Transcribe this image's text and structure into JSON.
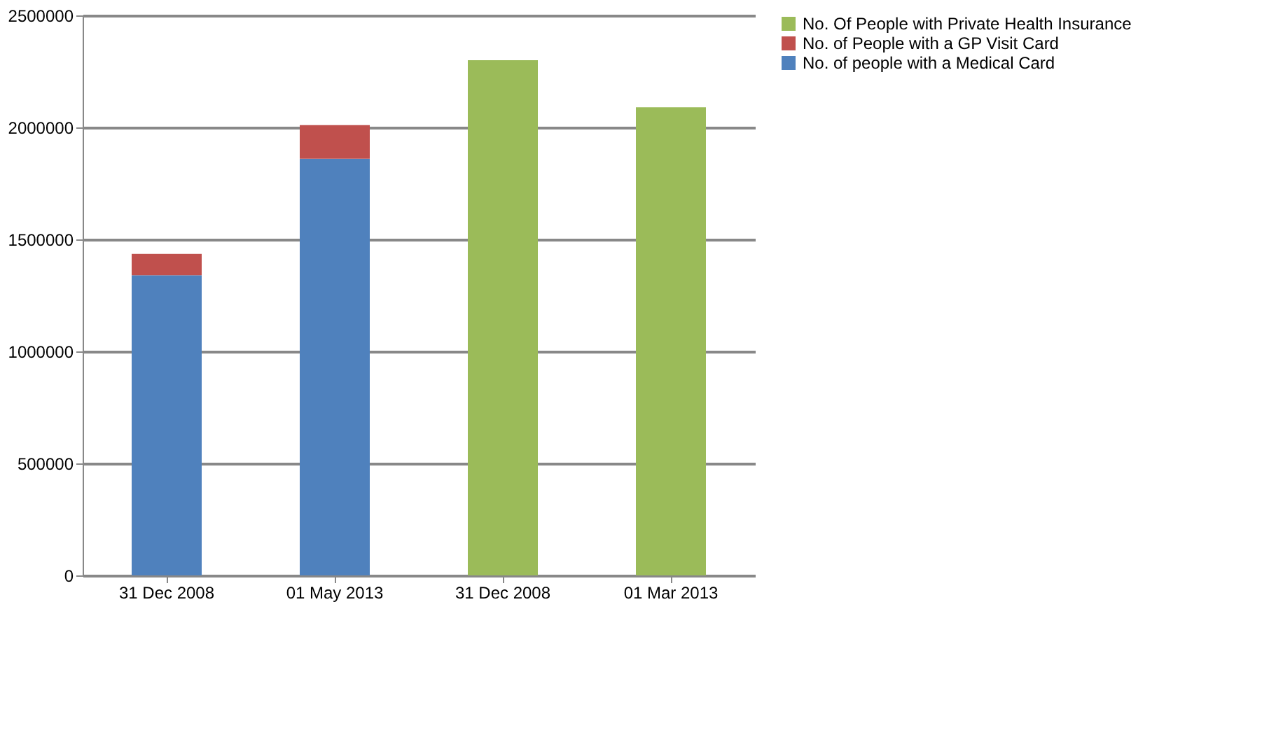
{
  "chart_data": {
    "type": "bar",
    "stacked": true,
    "categories": [
      "31 Dec 2008",
      "01 May 2013",
      "31 Dec 2008",
      "01 Mar 2013"
    ],
    "series": [
      {
        "name": "No. of people with a Medical Card",
        "color": "#4f81bd",
        "values": [
          1340000,
          1860000,
          null,
          null
        ]
      },
      {
        "name": "No. of People with a GP Visit Card",
        "color": "#c0504d",
        "values": [
          95000,
          150000,
          null,
          null
        ]
      },
      {
        "name": "No. Of People with Private Health Insurance",
        "color": "#9bbb59",
        "values": [
          null,
          null,
          2300000,
          2090000
        ]
      }
    ],
    "ylim": [
      0,
      2500000
    ],
    "yticks": [
      0,
      500000,
      1000000,
      1500000,
      2000000,
      2500000
    ],
    "grid": "y",
    "legend": "right"
  }
}
